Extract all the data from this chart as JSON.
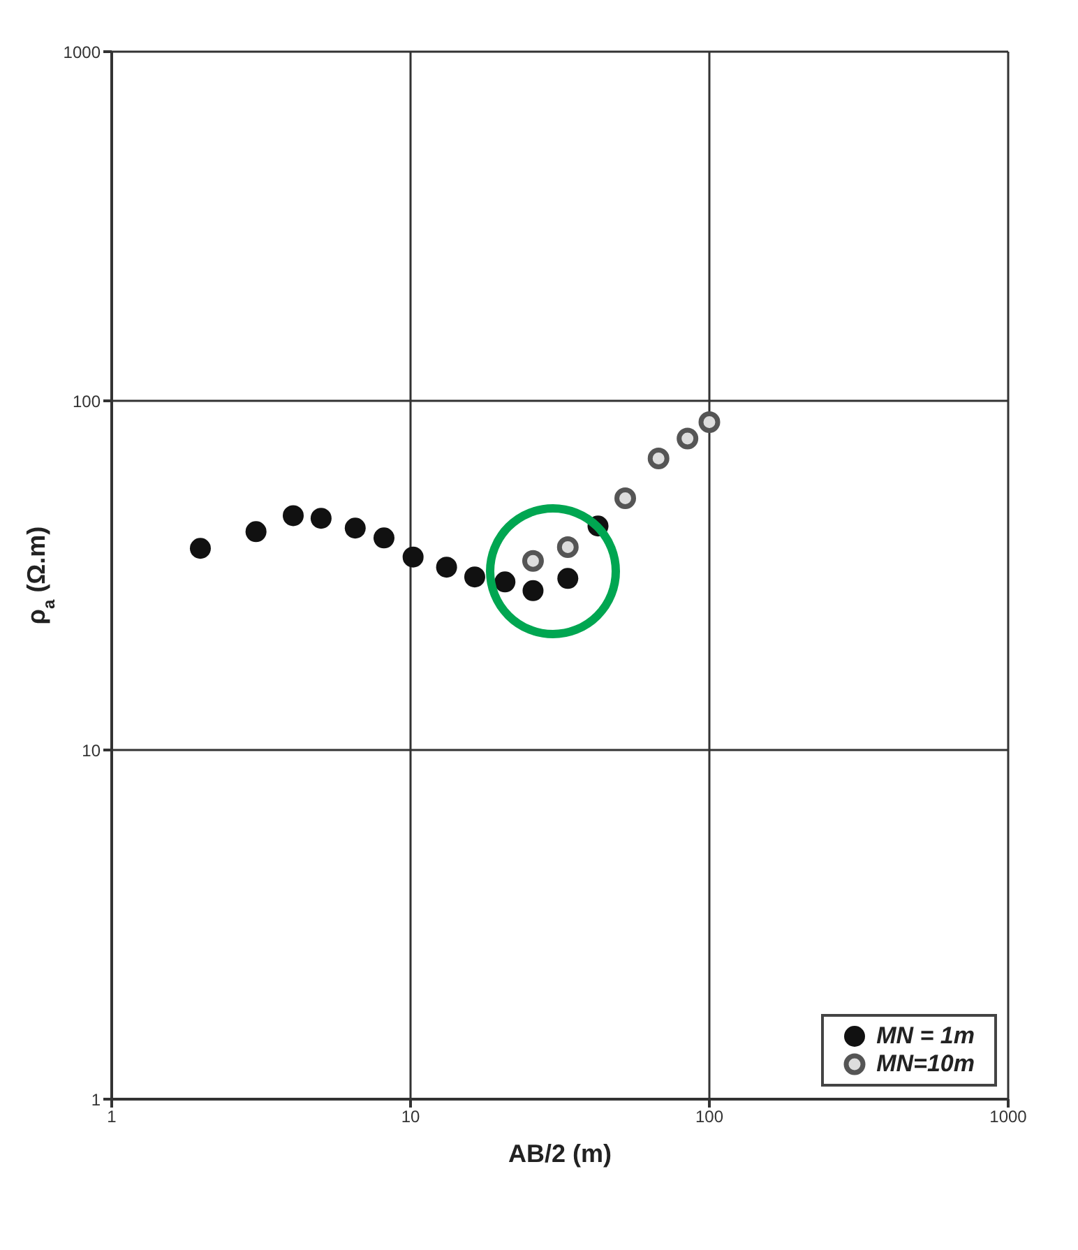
{
  "chart_data": {
    "type": "scatter",
    "xlabel": "AB/2 (m)",
    "ylabel": "ρ$_{a}$ (Ω.m)",
    "log": "xy",
    "xlim": [
      1,
      1000
    ],
    "ylim": [
      1,
      1000
    ],
    "xticks": [
      1,
      10,
      100,
      1000
    ],
    "yticks": [
      1,
      10,
      100,
      1000
    ],
    "grid": true,
    "legend": "bottom right",
    "marker": "circle",
    "series": [
      {
        "name": "MN = 1m",
        "color": "#111111",
        "x": [
          1.98,
          3.04,
          4.05,
          5.02,
          6.53,
          8.15,
          10.2,
          13.2,
          16.4,
          20.7,
          25.7,
          33.6,
          42.4
        ],
        "values": [
          37.8,
          42.2,
          46.9,
          46.1,
          43.2,
          40.5,
          35.7,
          33.4,
          31.3,
          30.3,
          28.6,
          31.0,
          43.8
        ]
      },
      {
        "name": "MN=10m",
        "color": "#555555",
        "x": [
          25.7,
          33.6,
          52.3,
          67.6,
          84.5,
          100
        ],
        "values": [
          34.8,
          38.1,
          52.6,
          68.4,
          78.0,
          86.9
        ]
      }
    ]
  }
}
